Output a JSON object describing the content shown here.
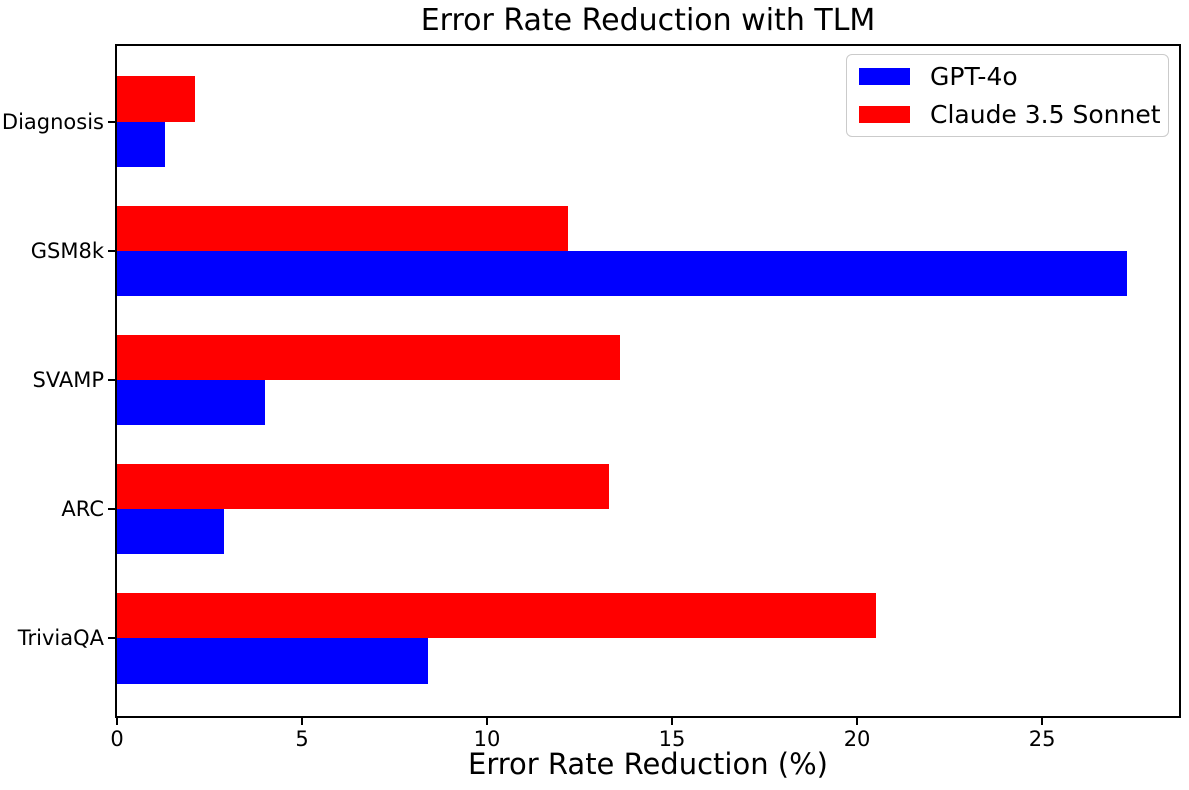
{
  "chart_data": {
    "type": "bar",
    "orientation": "horizontal",
    "title": "Error Rate Reduction with TLM",
    "xlabel": "Error Rate Reduction (%)",
    "ylabel": "",
    "categories": [
      "Diagnosis",
      "GSM8k",
      "SVAMP",
      "ARC",
      "TriviaQA"
    ],
    "series": [
      {
        "name": "GPT-4o",
        "color": "#0000ff",
        "values": [
          1.3,
          27.3,
          4.0,
          2.9,
          8.4
        ]
      },
      {
        "name": "Claude 3.5 Sonnet",
        "color": "#ff0000",
        "values": [
          2.1,
          12.2,
          13.6,
          13.3,
          20.5
        ]
      }
    ],
    "xticks": [
      0,
      5,
      10,
      15,
      20,
      25
    ],
    "xlim": [
      0,
      28.7
    ],
    "legend_position": "upper right",
    "grid": false,
    "bar_group_order_top_to_bottom": [
      "Claude 3.5 Sonnet",
      "GPT-4o"
    ]
  }
}
